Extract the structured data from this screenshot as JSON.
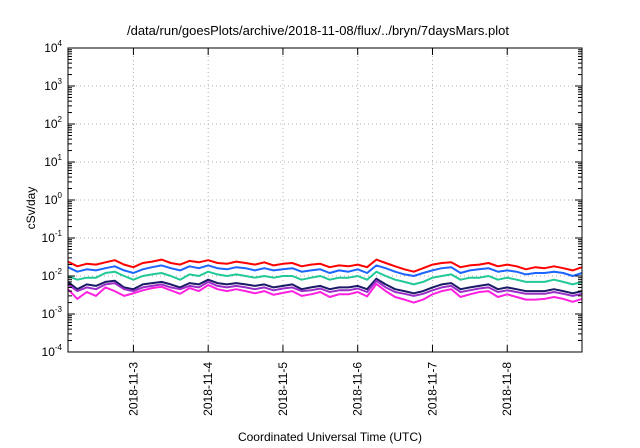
{
  "chart_data": {
    "type": "line",
    "title": "/data/run/goesPlots/archive/2018-11-08/flux/../bryn/7daysMars.plot",
    "xlabel": "Coordinated Universal Time (UTC)",
    "ylabel": "cSv/day",
    "yscale": "log",
    "ylim": [
      0.0001,
      10000
    ],
    "y_ticks": [
      {
        "base": "10",
        "exp": "-4"
      },
      {
        "base": "10",
        "exp": "-3"
      },
      {
        "base": "10",
        "exp": "-2"
      },
      {
        "base": "10",
        "exp": "-1"
      },
      {
        "base": "10",
        "exp": "0"
      },
      {
        "base": "10",
        "exp": "1"
      },
      {
        "base": "10",
        "exp": "2"
      },
      {
        "base": "10",
        "exp": "3"
      },
      {
        "base": "10",
        "exp": "4"
      }
    ],
    "xlim": [
      "2018-11-02 03:00",
      "2018-11-09 00:00"
    ],
    "x_ticks": [
      "2018-11-3",
      "2018-11-4",
      "2018-11-5",
      "2018-11-6",
      "2018-11-7",
      "2018-11-8"
    ],
    "x_tick_dates": [
      "2018-11-03",
      "2018-11-04",
      "2018-11-05",
      "2018-11-06",
      "2018-11-07",
      "2018-11-08"
    ],
    "grid": true,
    "x": [
      "2018-11-02 03:00",
      "2018-11-02 06:00",
      "2018-11-02 09:00",
      "2018-11-02 12:00",
      "2018-11-02 15:00",
      "2018-11-02 18:00",
      "2018-11-02 21:00",
      "2018-11-03 00:00",
      "2018-11-03 03:00",
      "2018-11-03 06:00",
      "2018-11-03 09:00",
      "2018-11-03 12:00",
      "2018-11-03 15:00",
      "2018-11-03 18:00",
      "2018-11-03 21:00",
      "2018-11-04 00:00",
      "2018-11-04 03:00",
      "2018-11-04 06:00",
      "2018-11-04 09:00",
      "2018-11-04 12:00",
      "2018-11-04 15:00",
      "2018-11-04 18:00",
      "2018-11-04 21:00",
      "2018-11-05 00:00",
      "2018-11-05 03:00",
      "2018-11-05 06:00",
      "2018-11-05 09:00",
      "2018-11-05 12:00",
      "2018-11-05 15:00",
      "2018-11-05 18:00",
      "2018-11-05 21:00",
      "2018-11-06 00:00",
      "2018-11-06 03:00",
      "2018-11-06 06:00",
      "2018-11-06 09:00",
      "2018-11-06 12:00",
      "2018-11-06 15:00",
      "2018-11-06 18:00",
      "2018-11-06 21:00",
      "2018-11-07 00:00",
      "2018-11-07 03:00",
      "2018-11-07 06:00",
      "2018-11-07 09:00",
      "2018-11-07 12:00",
      "2018-11-07 15:00",
      "2018-11-07 18:00",
      "2018-11-07 21:00",
      "2018-11-08 00:00",
      "2018-11-08 03:00",
      "2018-11-08 06:00",
      "2018-11-08 09:00",
      "2018-11-08 12:00",
      "2018-11-08 15:00",
      "2018-11-08 18:00",
      "2018-11-08 21:00",
      "2018-11-09 00:00"
    ],
    "series": [
      {
        "color": "#ff0000",
        "values": [
          0.024,
          0.018,
          0.021,
          0.02,
          0.023,
          0.026,
          0.02,
          0.017,
          0.022,
          0.024,
          0.027,
          0.022,
          0.02,
          0.025,
          0.023,
          0.026,
          0.022,
          0.021,
          0.024,
          0.022,
          0.02,
          0.023,
          0.019,
          0.021,
          0.022,
          0.018,
          0.02,
          0.021,
          0.017,
          0.019,
          0.018,
          0.02,
          0.017,
          0.027,
          0.022,
          0.018,
          0.015,
          0.013,
          0.016,
          0.02,
          0.022,
          0.023,
          0.017,
          0.019,
          0.02,
          0.022,
          0.018,
          0.02,
          0.018,
          0.015,
          0.017,
          0.016,
          0.018,
          0.016,
          0.014,
          0.017
        ]
      },
      {
        "color": "#1e64ff",
        "values": [
          0.017,
          0.013,
          0.015,
          0.014,
          0.016,
          0.018,
          0.014,
          0.012,
          0.015,
          0.017,
          0.019,
          0.016,
          0.014,
          0.018,
          0.016,
          0.019,
          0.016,
          0.015,
          0.017,
          0.016,
          0.014,
          0.016,
          0.014,
          0.015,
          0.016,
          0.013,
          0.014,
          0.015,
          0.012,
          0.014,
          0.013,
          0.015,
          0.012,
          0.019,
          0.016,
          0.013,
          0.011,
          0.01,
          0.012,
          0.014,
          0.016,
          0.017,
          0.012,
          0.014,
          0.015,
          0.016,
          0.013,
          0.014,
          0.013,
          0.011,
          0.012,
          0.012,
          0.013,
          0.012,
          0.01,
          0.012
        ]
      },
      {
        "color": "#22c997",
        "values": [
          0.01,
          0.008,
          0.009,
          0.009,
          0.012,
          0.013,
          0.01,
          0.008,
          0.01,
          0.011,
          0.012,
          0.01,
          0.008,
          0.011,
          0.01,
          0.013,
          0.011,
          0.01,
          0.011,
          0.01,
          0.009,
          0.01,
          0.009,
          0.01,
          0.01,
          0.008,
          0.009,
          0.01,
          0.008,
          0.009,
          0.009,
          0.01,
          0.008,
          0.013,
          0.01,
          0.008,
          0.007,
          0.006,
          0.007,
          0.009,
          0.01,
          0.011,
          0.008,
          0.009,
          0.009,
          0.01,
          0.008,
          0.009,
          0.008,
          0.007,
          0.007,
          0.007,
          0.008,
          0.007,
          0.006,
          0.007
        ]
      },
      {
        "color": "#1a1a66",
        "values": [
          0.007,
          0.0045,
          0.006,
          0.0055,
          0.007,
          0.0075,
          0.005,
          0.0045,
          0.006,
          0.0065,
          0.007,
          0.006,
          0.005,
          0.0065,
          0.006,
          0.008,
          0.0065,
          0.006,
          0.0065,
          0.006,
          0.0055,
          0.006,
          0.005,
          0.0055,
          0.006,
          0.0045,
          0.005,
          0.0055,
          0.0045,
          0.005,
          0.005,
          0.0055,
          0.0045,
          0.0085,
          0.006,
          0.0045,
          0.004,
          0.0035,
          0.004,
          0.005,
          0.006,
          0.0065,
          0.0045,
          0.005,
          0.0055,
          0.006,
          0.0045,
          0.005,
          0.0045,
          0.004,
          0.004,
          0.004,
          0.0045,
          0.004,
          0.0035,
          0.004
        ]
      },
      {
        "color": "#9a2fc8",
        "values": [
          0.006,
          0.004,
          0.005,
          0.0045,
          0.006,
          0.0065,
          0.0045,
          0.004,
          0.005,
          0.0055,
          0.006,
          0.005,
          0.0045,
          0.0055,
          0.005,
          0.007,
          0.0055,
          0.005,
          0.0055,
          0.005,
          0.0045,
          0.005,
          0.0042,
          0.0047,
          0.005,
          0.004,
          0.0042,
          0.0047,
          0.0038,
          0.0042,
          0.0042,
          0.0047,
          0.0038,
          0.0075,
          0.005,
          0.0038,
          0.0034,
          0.003,
          0.0034,
          0.0042,
          0.005,
          0.0055,
          0.0038,
          0.0042,
          0.0047,
          0.005,
          0.0038,
          0.0042,
          0.0038,
          0.0034,
          0.0034,
          0.0034,
          0.0038,
          0.0034,
          0.003,
          0.0034
        ]
      },
      {
        "color": "#ff20e0",
        "values": [
          0.0045,
          0.0025,
          0.0038,
          0.003,
          0.005,
          0.004,
          0.003,
          0.0035,
          0.0042,
          0.0048,
          0.0052,
          0.0042,
          0.0034,
          0.0048,
          0.004,
          0.0058,
          0.0045,
          0.004,
          0.0045,
          0.004,
          0.0035,
          0.004,
          0.0032,
          0.0036,
          0.004,
          0.003,
          0.0033,
          0.0038,
          0.0028,
          0.0033,
          0.0033,
          0.0038,
          0.0029,
          0.0062,
          0.004,
          0.0028,
          0.0024,
          0.002,
          0.0024,
          0.0033,
          0.004,
          0.0045,
          0.0028,
          0.0033,
          0.0038,
          0.004,
          0.0028,
          0.0033,
          0.0028,
          0.0024,
          0.0024,
          0.0025,
          0.0028,
          0.0025,
          0.0021,
          0.0025
        ]
      }
    ]
  }
}
